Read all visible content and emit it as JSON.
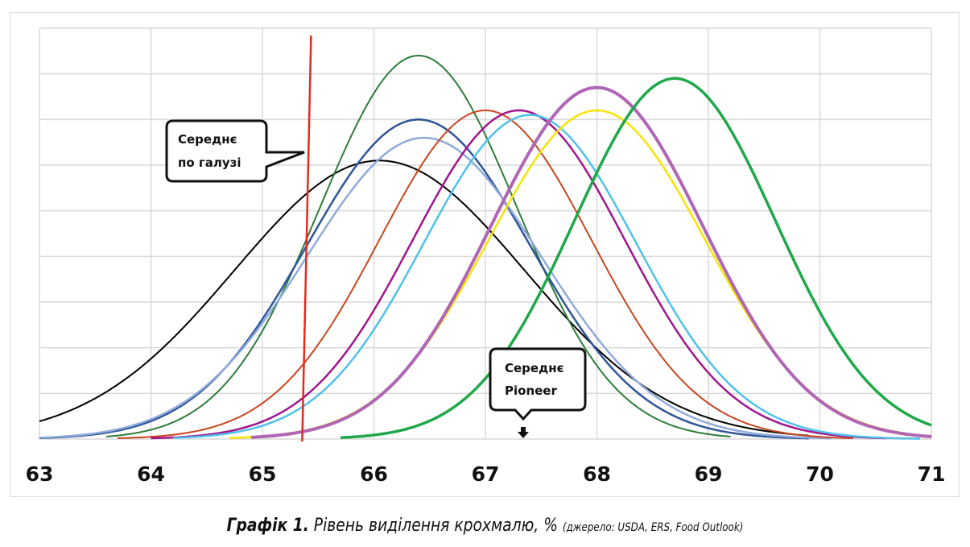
{
  "chart_data": {
    "type": "line",
    "title": "Графік 1.",
    "subtitle": "Рівень виділення крохмалю, %",
    "source": "(джерело: USDA, ERS, Food Outlook)",
    "xlabel": "",
    "ylabel": "",
    "xlim": [
      63,
      71
    ],
    "ylim": [
      0,
      9
    ],
    "x_ticks": [
      "63",
      "64",
      "65",
      "66",
      "67",
      "68",
      "69",
      "70",
      "71"
    ],
    "grid": true,
    "legend": "none",
    "series": [
      {
        "color": "#000000",
        "mean": 66.05,
        "sigma": 1.3,
        "peak": 6.1,
        "range": [
          63,
          69.9
        ],
        "width": 2
      },
      {
        "color": "#2E7D3A",
        "mean": 66.4,
        "sigma": 0.88,
        "peak": 8.4,
        "range": [
          63.6,
          69.2
        ],
        "width": 2
      },
      {
        "color": "#2F5597",
        "mean": 66.4,
        "sigma": 1.0,
        "peak": 7.0,
        "range": [
          63,
          69.9
        ],
        "width": 2.5
      },
      {
        "color": "#8FAADC",
        "mean": 66.45,
        "sigma": 1.05,
        "peak": 6.6,
        "range": [
          63,
          70.1
        ],
        "width": 2.5
      },
      {
        "color": "#C9451E",
        "mean": 67.0,
        "sigma": 0.95,
        "peak": 7.2,
        "range": [
          63.7,
          70.3
        ],
        "width": 2
      },
      {
        "color": "#A0168C",
        "mean": 67.3,
        "sigma": 0.95,
        "peak": 7.2,
        "range": [
          64.0,
          70.6
        ],
        "width": 2.5
      },
      {
        "color": "#4FC1EA",
        "mean": 67.4,
        "sigma": 0.95,
        "peak": 7.1,
        "range": [
          64.2,
          70.9
        ],
        "width": 2.5
      },
      {
        "color": "#F5E500",
        "mean": 68.0,
        "sigma": 0.97,
        "peak": 7.2,
        "range": [
          64.7,
          71
        ],
        "width": 2.5
      },
      {
        "color": "#B066B4",
        "mean": 68.0,
        "sigma": 0.95,
        "peak": 7.7,
        "range": [
          64.9,
          71
        ],
        "width": 4
      },
      {
        "color": "#1FA84A",
        "mean": 68.7,
        "sigma": 0.9,
        "peak": 7.9,
        "range": [
          65.7,
          71
        ],
        "width": 3.5
      }
    ],
    "reference_lines": [
      {
        "x": 65.4,
        "color": "#E8291C",
        "label": "Середнє по галузі"
      }
    ],
    "annotations": [
      {
        "x": 65.4,
        "line1": "Середнє",
        "line2": "по галузі"
      },
      {
        "x": 67.35,
        "line1": "Середнє",
        "line2": "Pioneer"
      }
    ]
  }
}
